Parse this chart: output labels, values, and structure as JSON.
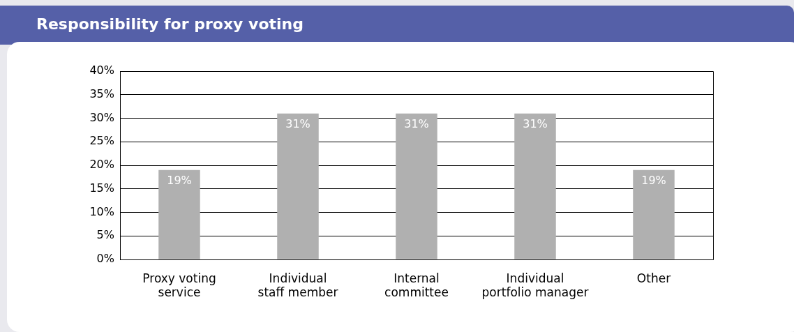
{
  "chart_data": {
    "type": "bar",
    "title": "Responsibility for proxy voting",
    "categories": [
      "Proxy voting\nservice",
      "Individual\nstaff member",
      "Internal\ncommittee",
      "Individual\nportfolio manager",
      "Other"
    ],
    "values": [
      19,
      31,
      31,
      31,
      19
    ],
    "color": "#b0b0b0",
    "ylim": [
      0,
      40
    ],
    "yticks": [
      {
        "value": 0,
        "label": "0%"
      },
      {
        "value": 5,
        "label": "5%"
      },
      {
        "value": 10,
        "label": "10%"
      },
      {
        "value": 15,
        "label": "15%"
      },
      {
        "value": 20,
        "label": "20%"
      },
      {
        "value": 25,
        "label": "25%"
      },
      {
        "value": 30,
        "label": "30%"
      },
      {
        "value": 35,
        "label": "35%"
      },
      {
        "value": 40,
        "label": "40%"
      }
    ],
    "value_labels": [
      "19%",
      "31%",
      "31%",
      "31%",
      "19%"
    ],
    "grid": "y",
    "legend": false
  }
}
